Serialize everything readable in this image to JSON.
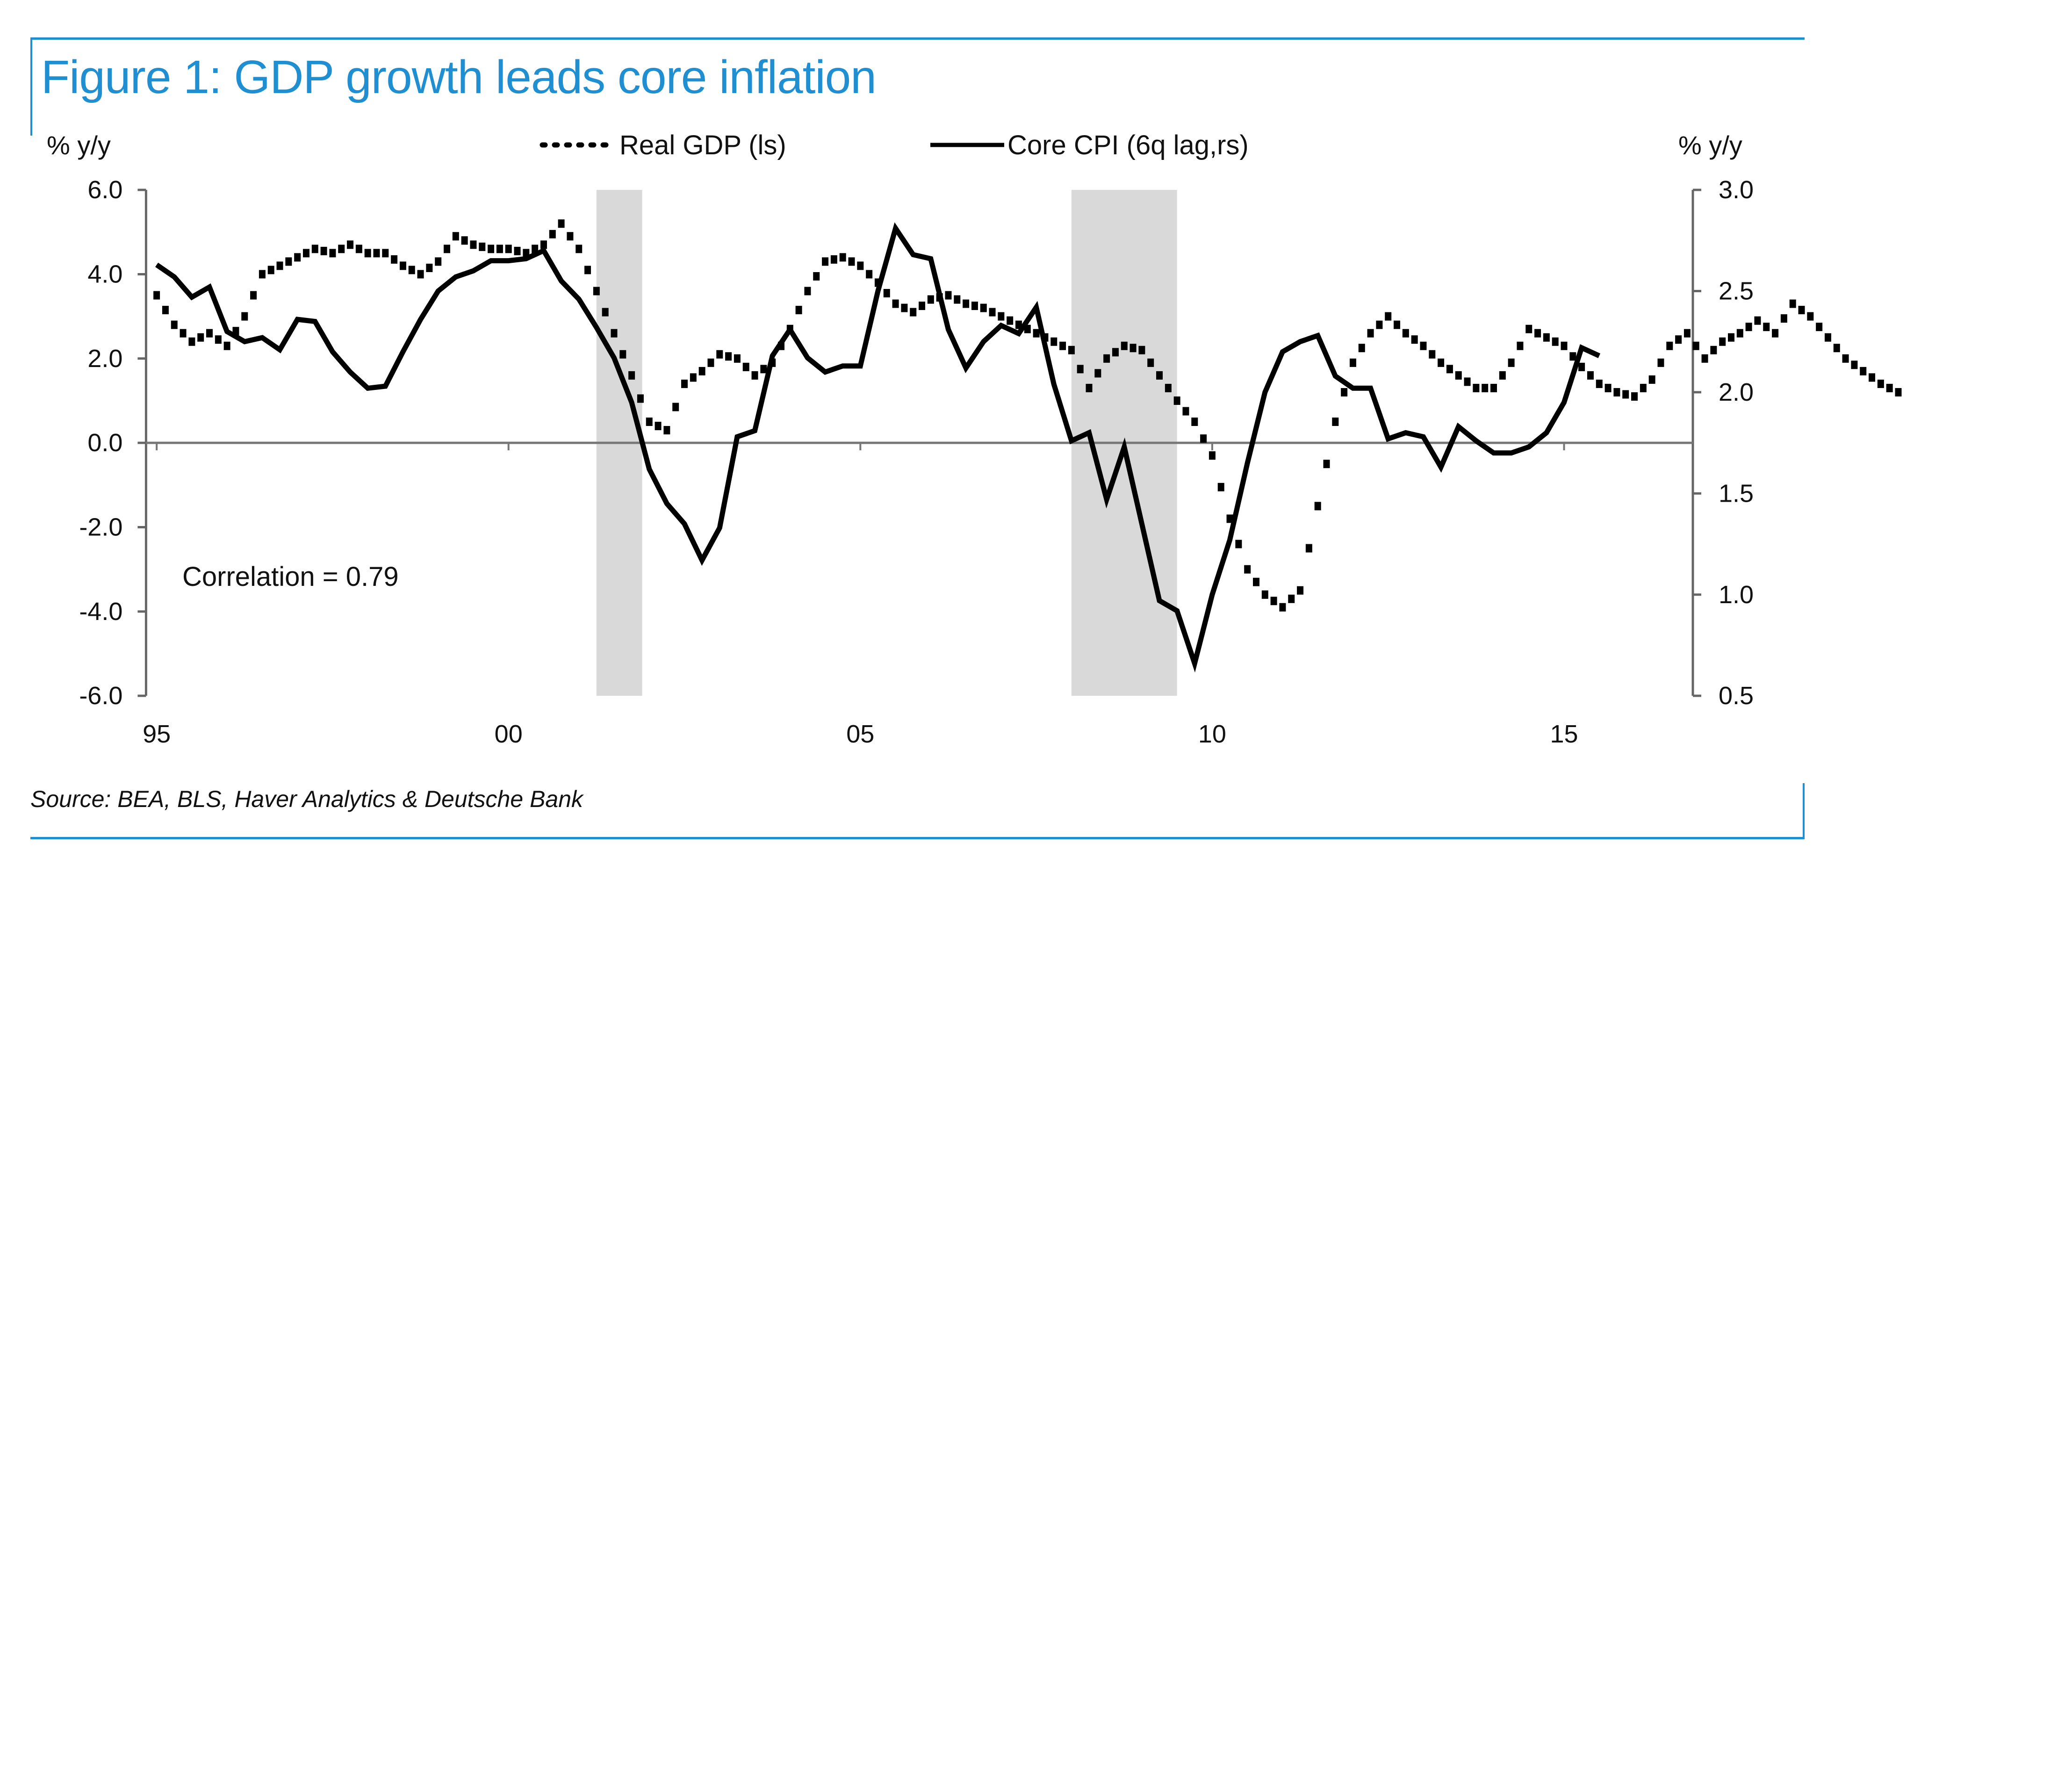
{
  "figure": {
    "title": "Figure 1: GDP growth leads core inflation",
    "source": "Source: BEA, BLS, Haver Analytics & Deutsche Bank",
    "accent_color": "#1f8fd1"
  },
  "chart_data": {
    "type": "line",
    "title": "Figure 1: GDP growth leads core inflation",
    "xlabel": "",
    "ylabel_left": "% y/y",
    "ylabel_right": "% y/y",
    "x_ticks": [
      "95",
      "00",
      "05",
      "10",
      "15"
    ],
    "x_tick_values": [
      1995,
      2000,
      2005,
      2010,
      2015
    ],
    "xlim": [
      1995,
      2016.75
    ],
    "ylim_left": [
      -6.0,
      6.0
    ],
    "yticks_left": [
      "6.0",
      "4.0",
      "2.0",
      "0.0",
      "-2.0",
      "-4.0",
      "-6.0"
    ],
    "ylim_right": [
      0.5,
      3.0
    ],
    "yticks_right": [
      "3.0",
      "2.5",
      "2.0",
      "1.5",
      "1.0",
      "0.5"
    ],
    "legend_position": "top-center",
    "annotation": "Correlation = 0.79",
    "recessions": [
      [
        2001.25,
        2001.9
      ],
      [
        2008.0,
        2009.5
      ]
    ],
    "zero_line": true,
    "series": [
      {
        "name": "Real GDP (ls)",
        "axis": "left",
        "style": "dotted",
        "start": 1995.0,
        "step": 0.25,
        "values": [
          3.5,
          2.8,
          2.4,
          2.6,
          2.3,
          3.0,
          4.0,
          4.2,
          4.4,
          4.6,
          4.5,
          4.7,
          4.5,
          4.5,
          4.2,
          4.0,
          4.3,
          4.9,
          4.7,
          4.6,
          4.6,
          4.5,
          4.7,
          5.2,
          4.6,
          3.6,
          2.6,
          1.6,
          0.5,
          0.3,
          1.4,
          1.7,
          2.1,
          2.0,
          1.6,
          1.9,
          2.7,
          3.6,
          4.3,
          4.4,
          4.2,
          3.8,
          3.3,
          3.1,
          3.4,
          3.5,
          3.3,
          3.2,
          3.0,
          2.8,
          2.6,
          2.4,
          2.2,
          1.3,
          2.0,
          2.3,
          2.2,
          1.6,
          1.0,
          0.5,
          -0.3,
          -1.8,
          -3.0,
          -3.6,
          -3.9,
          -3.5,
          -1.5,
          0.5,
          1.9,
          2.6,
          3.0,
          2.6,
          2.3,
          1.9,
          1.6,
          1.3,
          1.3,
          1.9,
          2.7,
          2.5,
          2.3,
          1.8,
          1.4,
          1.2,
          1.1,
          1.5,
          2.3,
          2.6,
          2.0,
          2.4,
          2.6,
          2.9,
          2.6,
          3.3,
          3.0,
          2.5,
          2.0,
          1.7,
          1.4,
          1.2
        ]
      },
      {
        "name": "Core CPI (6q lag,rs)",
        "axis": "right",
        "style": "solid",
        "start": 1995.0,
        "step": 0.25,
        "values": [
          2.63,
          2.57,
          2.47,
          2.52,
          2.3,
          2.25,
          2.27,
          2.21,
          2.36,
          2.35,
          2.2,
          2.1,
          2.02,
          2.03,
          2.2,
          2.36,
          2.5,
          2.57,
          2.6,
          2.65,
          2.65,
          2.66,
          2.7,
          2.55,
          2.46,
          2.32,
          2.17,
          1.95,
          1.62,
          1.45,
          1.35,
          1.17,
          1.33,
          1.78,
          1.81,
          2.18,
          2.31,
          2.17,
          2.1,
          2.13,
          2.13,
          2.5,
          2.81,
          2.68,
          2.66,
          2.31,
          2.12,
          2.25,
          2.33,
          2.29,
          2.42,
          2.04,
          1.76,
          1.8,
          1.47,
          1.73,
          1.35,
          0.97,
          0.92,
          0.66,
          1.0,
          1.27,
          1.65,
          2.0,
          2.2,
          2.25,
          2.28,
          2.08,
          2.02,
          2.02,
          1.77,
          1.8,
          1.78,
          1.63,
          1.83,
          1.76,
          1.7,
          1.7,
          1.73,
          1.8,
          1.95,
          2.22,
          2.18
        ]
      }
    ]
  },
  "legend": {
    "gdp_label": "Real GDP (ls)",
    "cpi_label": "Core CPI (6q lag,rs)"
  }
}
